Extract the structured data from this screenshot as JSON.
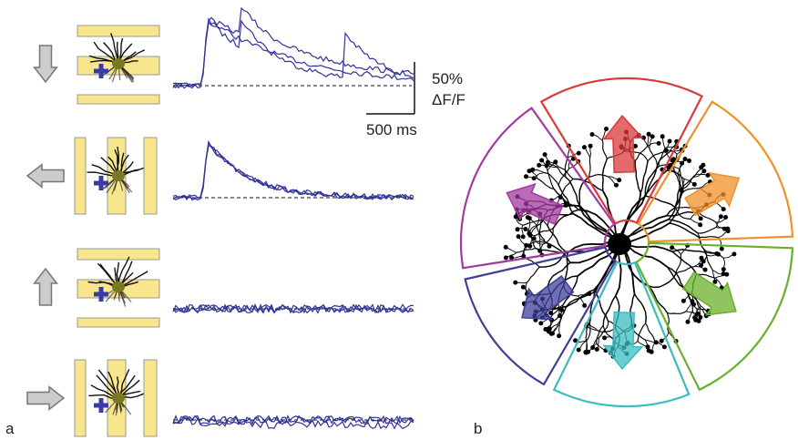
{
  "panel_a": {
    "label": "a",
    "scale_bar": {
      "amplitude": "50%",
      "amplitude_unit": "ΔF/F",
      "time": "500 ms"
    }
  },
  "panel_b": {
    "label": "b"
  }
}
